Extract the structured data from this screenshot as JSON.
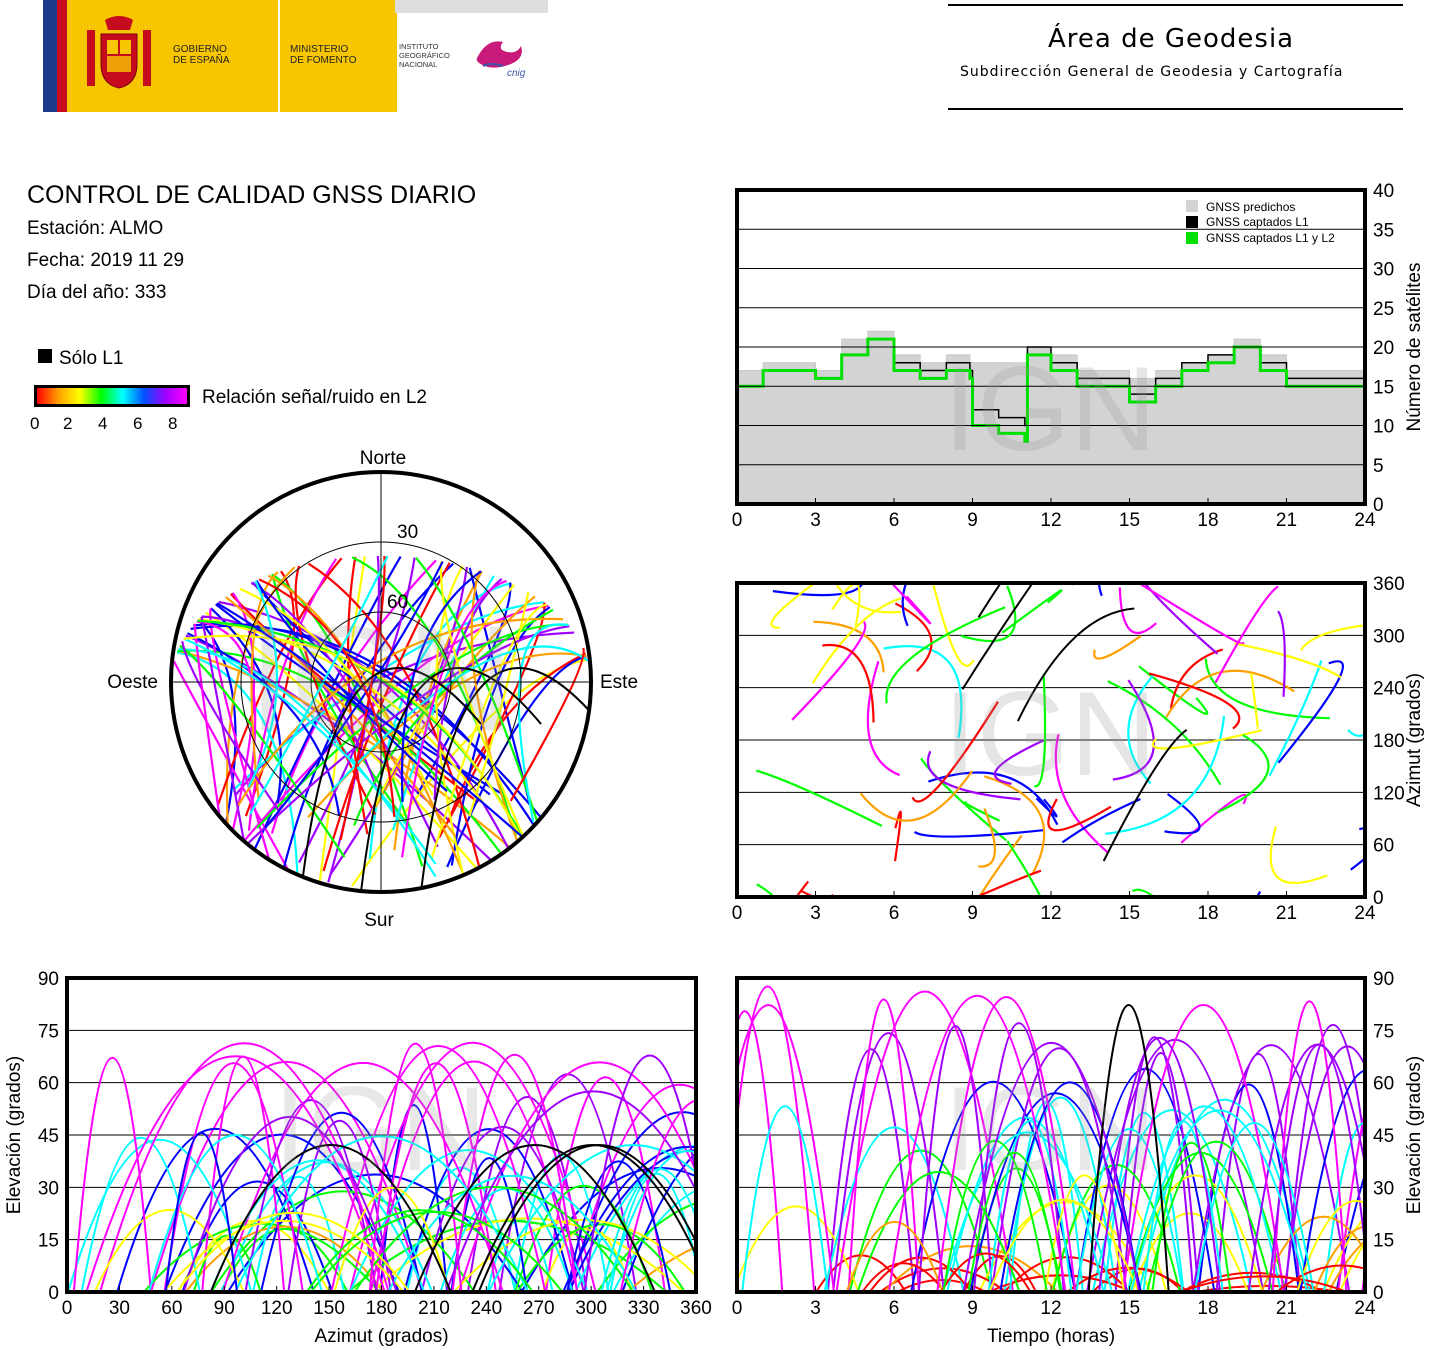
{
  "header": {
    "gov_line1": "GOBIERNO",
    "gov_line2": "DE ESPAÑA",
    "min_line1": "MINISTERIO",
    "min_line2": "DE FOMENTO",
    "ign_line1": "INSTITUTO",
    "ign_line2": "GEOGRÁFICO",
    "ign_line3": "NACIONAL",
    "cnig": "cnig",
    "area_title": "Área de Geodesia",
    "area_subtitle": "Subdirección General de Geodesia y Cartografía"
  },
  "info": {
    "title": "CONTROL DE CALIDAD GNSS DIARIO",
    "station": "Estación: ALMO",
    "date": "Fecha: 2019 11 29",
    "doy": "Día del año: 333",
    "legend_solo_l1": "Sólo L1",
    "legend_snr": "Relación señal/ruido en L2",
    "snr_ticks": [
      "0",
      "2",
      "4",
      "6",
      "8"
    ]
  },
  "watermark": "IGN",
  "colors": {
    "predicted": "#d3d3d3",
    "l1": "#000000",
    "l1l2": "#00e000",
    "snr_scale": [
      "#ff0000",
      "#ffa000",
      "#ffff00",
      "#00ff00",
      "#00ffff",
      "#0000ff",
      "#a000ff",
      "#ff00ff"
    ]
  },
  "polar": {
    "north": "Norte",
    "south": "Sur",
    "west": "Oeste",
    "east": "Este",
    "ring_labels": [
      "30",
      "60"
    ]
  },
  "chart_data": [
    {
      "id": "sats",
      "type": "area",
      "xlabel": "",
      "ylabel": "Número de satélites",
      "xlim": [
        0,
        24
      ],
      "ylim": [
        0,
        40
      ],
      "xticks": [
        "0",
        "3",
        "6",
        "9",
        "12",
        "15",
        "18",
        "21",
        "24"
      ],
      "yticks": [
        "0",
        "5",
        "10",
        "15",
        "20",
        "25",
        "30",
        "35",
        "40"
      ],
      "legend": [
        "GNSS predichos",
        "GNSS captados L1",
        "GNSS captados L1 y L2"
      ],
      "legend_position": "top-right",
      "x": [
        0,
        1,
        2,
        3,
        4,
        5,
        6,
        7,
        8,
        8.9,
        9,
        10,
        11,
        11.1,
        12,
        13,
        14,
        15,
        16,
        17,
        18,
        19,
        20,
        21,
        22,
        23,
        24
      ],
      "series": [
        {
          "name": "GNSS predichos",
          "values": [
            17,
            18,
            18,
            17,
            21,
            22,
            19,
            18,
            19,
            18,
            18,
            18,
            18,
            20,
            19,
            17,
            17,
            16,
            17,
            18,
            19,
            21,
            19,
            17,
            17,
            17,
            16
          ]
        },
        {
          "name": "GNSS captados L1",
          "values": [
            15,
            17,
            17,
            16,
            19,
            21,
            18,
            17,
            18,
            17,
            12,
            11,
            10,
            20,
            18,
            16,
            16,
            14,
            16,
            18,
            19,
            20,
            18,
            16,
            16,
            16,
            15
          ]
        },
        {
          "name": "GNSS captados L1 y L2",
          "values": [
            15,
            17,
            17,
            16,
            19,
            21,
            17,
            16,
            17,
            16,
            10,
            9,
            8,
            19,
            17,
            15,
            15,
            13,
            15,
            17,
            18,
            20,
            17,
            15,
            15,
            15,
            15
          ]
        }
      ]
    },
    {
      "id": "azimut-time",
      "type": "scatter",
      "xlabel": "",
      "ylabel": "Azimut (grados)",
      "xlim": [
        0,
        24
      ],
      "ylim": [
        0,
        360
      ],
      "xticks": [
        "0",
        "3",
        "6",
        "9",
        "12",
        "15",
        "18",
        "21",
        "24"
      ],
      "yticks": [
        "0",
        "60",
        "120",
        "180",
        "240",
        "300",
        "360"
      ]
    },
    {
      "id": "elev-azimut",
      "type": "scatter",
      "xlabel": "Azimut (grados)",
      "ylabel": "Elevación (grados)",
      "xlim": [
        0,
        360
      ],
      "ylim": [
        0,
        90
      ],
      "xticks": [
        "0",
        "30",
        "60",
        "90",
        "120",
        "150",
        "180",
        "210",
        "240",
        "270",
        "300",
        "330",
        "360"
      ],
      "yticks": [
        "0",
        "15",
        "30",
        "45",
        "60",
        "75",
        "90"
      ]
    },
    {
      "id": "elev-time",
      "type": "scatter",
      "xlabel": "Tiempo (horas)",
      "ylabel": "Elevación (grados)",
      "xlim": [
        0,
        24
      ],
      "ylim": [
        0,
        90
      ],
      "xticks": [
        "0",
        "3",
        "6",
        "9",
        "12",
        "15",
        "18",
        "21",
        "24"
      ],
      "yticks": [
        "0",
        "15",
        "30",
        "45",
        "60",
        "75",
        "90"
      ]
    }
  ]
}
